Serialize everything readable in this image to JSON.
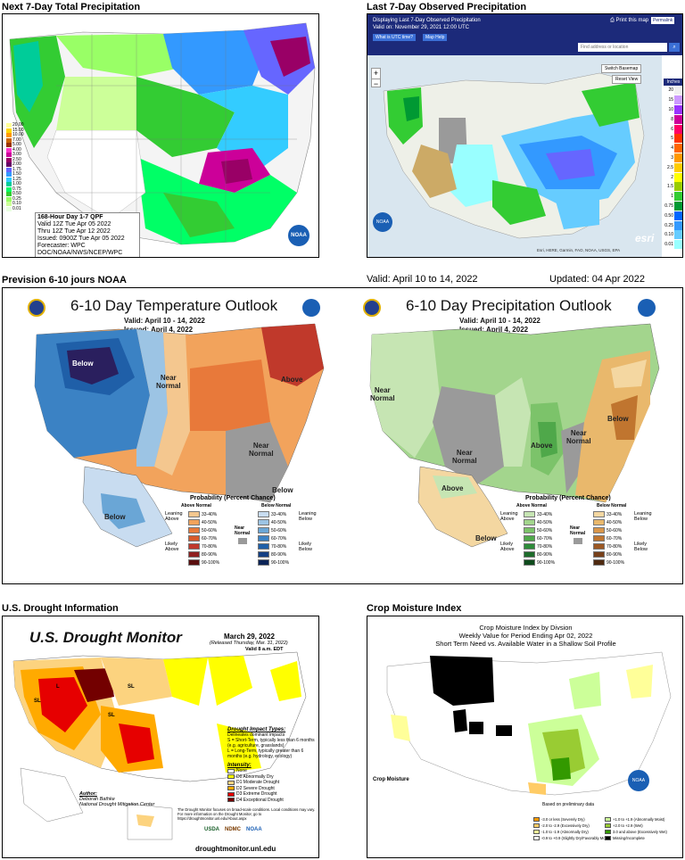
{
  "sections": {
    "wpc_title": "Next 7-Day Total Precipitation",
    "observed_title": "Last 7-Day Observed Precipitation",
    "noaa_title": "Prevision 6-10 jours NOAA",
    "valid_range": "Valid: April 10 to 14, 2022",
    "updated": "Updated: 04 Apr 2022",
    "drought_title": "U.S. Drought Information",
    "crop_title": "Crop Moisture Index"
  },
  "wpc": {
    "legend": [
      "20.00",
      "15.00",
      "10.00",
      "7.00",
      "5.00",
      "4.00",
      "3.00",
      "2.50",
      "2.00",
      "1.75",
      "1.50",
      "1.25",
      "1.00",
      "0.75",
      "0.50",
      "0.25",
      "0.10",
      "0.01"
    ],
    "legend_colors": [
      "#ffff99",
      "#ffd700",
      "#ff9900",
      "#cc6600",
      "#993300",
      "#ff33cc",
      "#cc0099",
      "#990066",
      "#660066",
      "#6666ff",
      "#3399ff",
      "#33ccff",
      "#00cc99",
      "#00ff66",
      "#33cc33",
      "#99ff66",
      "#ccff99",
      "#e8ffe0"
    ],
    "info_lines": [
      "168-Hour Day 1-7 QPF",
      "Valid 12Z Tue Apr 05 2022",
      "Thru 12Z Tue Apr 12 2022",
      "Issued: 0900Z Tue Apr 05 2022",
      "Forecaster: WPC",
      "DOC/NOAA/NWS/NCEP/WPC"
    ],
    "logo": "NOAA"
  },
  "observed": {
    "header": "Displaying Last 7-Day Observed Precipitation",
    "valid": "Valid on: November 29, 2021 12:00 UTC",
    "btn_utc": "What is UTC time?",
    "btn_help": "Map Help",
    "print": "Print this map",
    "permalink": "Permalink",
    "search_placeholder": "Find address or location",
    "switch_basemap": "Switch Basemap",
    "reset_view": "Reset View",
    "zoom_in": "+",
    "zoom_out": "−",
    "scale_values": [
      "20",
      "15",
      "10",
      "8",
      "6",
      "5",
      "4",
      "3",
      "2.5",
      "2",
      "1.5",
      "1",
      "0.75",
      "0.50",
      "0.25",
      "0.10",
      "0.01"
    ],
    "scale_colors": [
      "#f0f0f0",
      "#cc99ff",
      "#9933ff",
      "#cc0099",
      "#ff0066",
      "#ff3300",
      "#ff6600",
      "#ff9900",
      "#ffcc00",
      "#ffff00",
      "#99cc00",
      "#33cc33",
      "#009933",
      "#0066ff",
      "#3399ff",
      "#66ccff",
      "#99ffff"
    ],
    "units": "Inches",
    "attribution": "Esri, HERE, Garmin, FAO, NOAA, USGS, EPA",
    "esri": "esri"
  },
  "temp_outlook": {
    "title": "6-10 Day Temperature Outlook",
    "valid": "Valid:",
    "valid_val": "April 10 - 14, 2022",
    "issued": "Issued:",
    "issued_val": "April 4, 2022",
    "labels": {
      "below": "Below",
      "near_normal": "Near\nNormal",
      "above": "Above",
      "near_normal2": "Near\nNormal",
      "below_se": "Below",
      "below_ak": "Below"
    },
    "legend_title": "Probability (Percent Chance)",
    "above_hdr": "Above Normal",
    "below_hdr": "Below Normal",
    "near_hdr": "Near\nNormal",
    "ranges": [
      "33-40%",
      "40-50%",
      "50-60%",
      "60-70%",
      "70-80%",
      "80-90%",
      "90-100%"
    ],
    "above_colors": [
      "#f4c78f",
      "#f2a35c",
      "#e8793a",
      "#d75a2b",
      "#c0392b",
      "#8e1f1f",
      "#5a0f0f"
    ],
    "below_colors": [
      "#c8dcf0",
      "#9cc4e4",
      "#6aa6d6",
      "#3b82c4",
      "#1f5fa8",
      "#143f82",
      "#0b2356"
    ],
    "leaning_above": "Leaning\nAbove",
    "likely_above": "Likely\nAbove",
    "leaning_below": "Leaning\nBelow",
    "likely_below": "Likely\nBelow"
  },
  "precip_outlook": {
    "title": "6-10 Day Precipitation Outlook",
    "valid": "Valid:",
    "valid_val": "April 10 - 14, 2022",
    "issued": "Issued:",
    "issued_val": "April 4, 2022",
    "labels": {
      "near_normal_w": "Near\nNormal",
      "near_normal_sw": "Near\nNormal",
      "above": "Above",
      "near_normal_e": "Near\nNormal",
      "below_se": "Below",
      "above_ak": "Above",
      "below_ak": "Below"
    },
    "legend_title": "Probability (Percent Chance)",
    "above_hdr": "Above Normal",
    "below_hdr": "Below Normal",
    "near_hdr": "Near\nNormal",
    "ranges": [
      "33-40%",
      "40-50%",
      "50-60%",
      "60-70%",
      "70-80%",
      "80-90%",
      "90-100%"
    ],
    "above_colors": [
      "#c6e5b3",
      "#a3d58d",
      "#7cc36a",
      "#4fa84a",
      "#2e8b3a",
      "#1d6b2a",
      "#0e4a1c"
    ],
    "below_colors": [
      "#f4d7a1",
      "#e9b86c",
      "#d9964a",
      "#c0752f",
      "#9c5824",
      "#77401a",
      "#4e2a10"
    ],
    "leaning_above": "Leaning\nAbove",
    "likely_above": "Likely\nAbove",
    "leaning_below": "Leaning\nBelow",
    "likely_below": "Likely\nBelow"
  },
  "drought": {
    "heading": "U.S. Drought Monitor",
    "date": "March 29, 2022",
    "released": "(Released Thursday, Mar. 31, 2022)",
    "valid": "Valid 8 a.m. EDT",
    "impact_title": "Drought Impact Types:",
    "impacts": [
      "Delineates dominant impacts",
      "S = Short-Term, typically less than 6 months (e.g. agriculture, grasslands)",
      "L = Long-Term, typically greater than 6 months (e.g. hydrology, ecology)"
    ],
    "intensity_title": "Intensity:",
    "intensity": [
      "None",
      "D0 Abnormally Dry",
      "D1 Moderate Drought",
      "D2 Severe Drought",
      "D3 Extreme Drought",
      "D4 Exceptional Drought"
    ],
    "intensity_colors": [
      "#ffffff",
      "#ffff00",
      "#fcd37f",
      "#ffaa00",
      "#e60000",
      "#730000"
    ],
    "author_label": "Author:",
    "author": "Deborah Bathke",
    "org": "National Drought Mitigation Center",
    "note": "The Drought Monitor focuses on broad-scale conditions. Local conditions may vary. For more information on the Drought Monitor, go to https://droughtmonitor.unl.edu/About.aspx",
    "url": "droughtmonitor.unl.edu",
    "logos": [
      "USDA",
      "NDMC",
      "NOAA"
    ]
  },
  "crop": {
    "title1": "Crop Moisture Index by Divsion",
    "title2": "Weekly Value for Period Ending Apr 02, 2022",
    "title3": "Short Term Need vs. Available Water in a Shallow Soil Profile",
    "legend_heading": "Crop Moisture",
    "prelim": "Based on preliminary data",
    "legend_left": [
      "-3.0 or less (Severely Dry)",
      "-2.0 to -2.9 (Excessively Dry)",
      "-1.0 to -1.9 (Abnormally Dry)",
      "-0.9 to +0.9 (Slightly Dry/Favorably Moist)"
    ],
    "legend_left_colors": [
      "#ff9900",
      "#ffcc66",
      "#ffff99",
      "#ffffff"
    ],
    "legend_right": [
      "+1.0 to +1.9 (Abnormally Moist)",
      "+2.0 to +2.9 (Wet)",
      "3.0 and above (Excessively Wet)",
      "Missing/Incomplete"
    ],
    "legend_right_colors": [
      "#ccff99",
      "#99cc33",
      "#339900",
      "#000000"
    ],
    "logo": "NOAA"
  }
}
